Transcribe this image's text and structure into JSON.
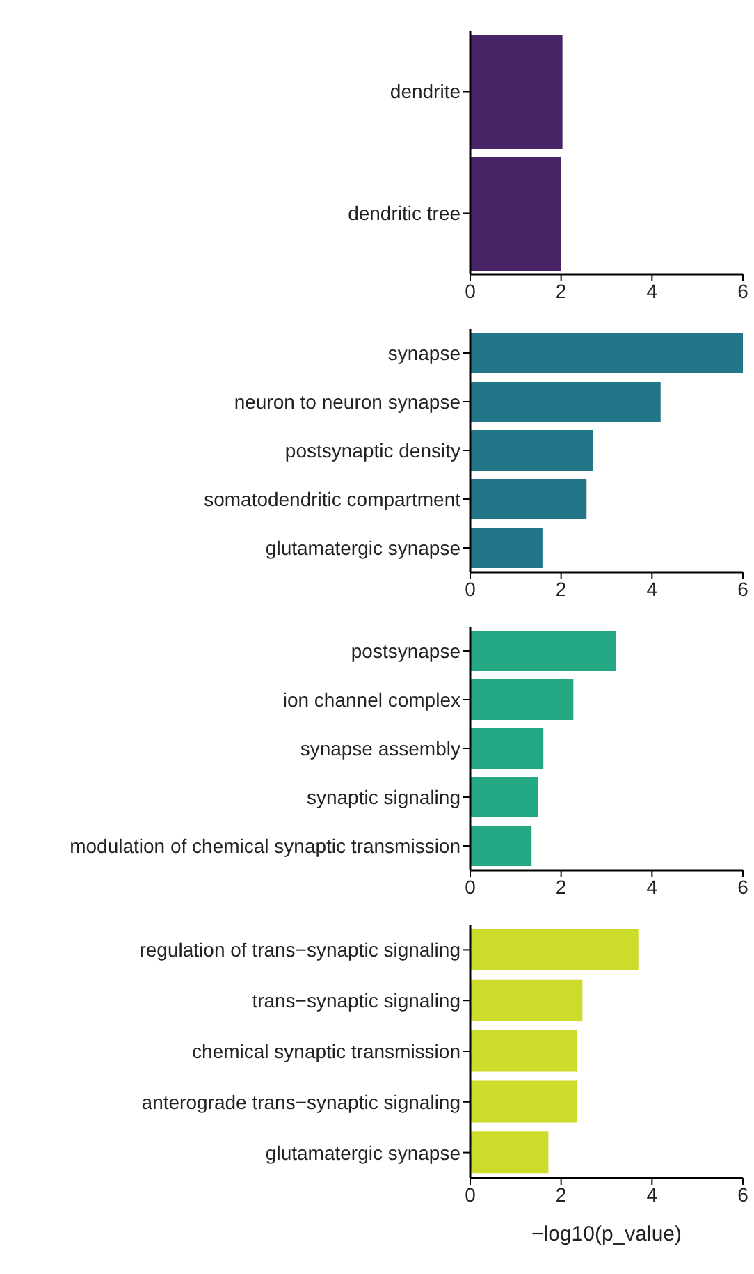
{
  "chart_data": [
    {
      "type": "bar",
      "orientation": "horizontal",
      "categories": [
        "dendrite",
        "dendritic tree"
      ],
      "values": [
        2.03,
        2.0
      ],
      "color": "#482466",
      "xlim": [
        0,
        6
      ],
      "xticks": [
        0,
        2,
        4,
        6
      ],
      "grid": false,
      "legend": false
    },
    {
      "type": "bar",
      "orientation": "horizontal",
      "categories": [
        "synapse",
        "neuron to neuron synapse",
        "postsynaptic density",
        "somatodendritic compartment",
        "glutamatergic synapse"
      ],
      "values": [
        6,
        4.19,
        2.7,
        2.56,
        1.59
      ],
      "color": "#237688",
      "xlim": [
        0,
        6
      ],
      "xticks": [
        0,
        2,
        4,
        6
      ],
      "grid": false,
      "legend": false
    },
    {
      "type": "bar",
      "orientation": "horizontal",
      "categories": [
        "postsynapse",
        "ion channel complex",
        "synapse assembly",
        "synaptic signaling",
        "modulation of chemical synaptic transmission"
      ],
      "values": [
        3.21,
        2.27,
        1.61,
        1.5,
        1.35
      ],
      "color": "#24a884",
      "xlim": [
        0,
        6
      ],
      "xticks": [
        0,
        2,
        4,
        6
      ],
      "grid": false,
      "legend": false
    },
    {
      "type": "bar",
      "orientation": "horizontal",
      "categories": [
        "regulation of trans−synaptic signaling",
        "trans−synaptic signaling",
        "chemical synaptic transmission",
        "anterograde trans−synaptic signaling",
        "glutamatergic synapse"
      ],
      "values": [
        3.7,
        2.47,
        2.35,
        2.35,
        1.72
      ],
      "color": "#cddc2a",
      "xlim": [
        0,
        6
      ],
      "xticks": [
        0,
        2,
        4,
        6
      ],
      "grid": false,
      "legend": false,
      "xlabel": "−log10(p_value)"
    }
  ]
}
